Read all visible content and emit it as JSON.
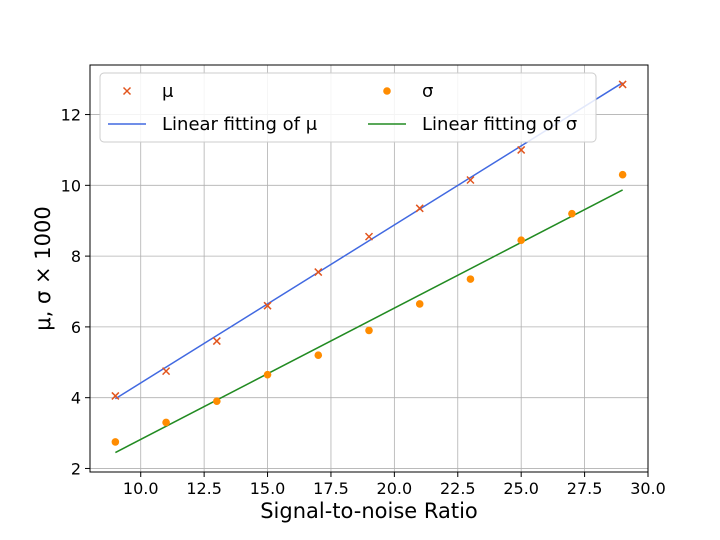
{
  "chart_data": {
    "type": "scatter",
    "xlabel": "Signal-to-noise Ratio",
    "ylabel": "μ, σ × 1000",
    "xlim": [
      8.0,
      30.0
    ],
    "ylim": [
      1.9,
      13.4
    ],
    "x_ticks": [
      "10.0",
      "12.5",
      "15.0",
      "17.5",
      "20.0",
      "22.5",
      "25.0",
      "27.5",
      "30.0"
    ],
    "x_tick_values": [
      10.0,
      12.5,
      15.0,
      17.5,
      20.0,
      22.5,
      25.0,
      27.5,
      30.0
    ],
    "y_ticks": [
      "2",
      "4",
      "6",
      "8",
      "10",
      "12"
    ],
    "y_tick_values": [
      2,
      4,
      6,
      8,
      10,
      12
    ],
    "grid": true,
    "legend_position": "top-left",
    "series": [
      {
        "name": "μ",
        "kind": "scatter",
        "marker": "x",
        "color": "#e2551e",
        "x": [
          9,
          11,
          13,
          15,
          17,
          19,
          21,
          23,
          25,
          29
        ],
        "y": [
          4.05,
          4.75,
          5.6,
          6.6,
          7.55,
          8.55,
          9.35,
          10.15,
          11.0,
          12.85
        ]
      },
      {
        "name": "σ",
        "kind": "scatter",
        "marker": "o",
        "color": "#ff8c00",
        "x": [
          9,
          11,
          13,
          15,
          17,
          19,
          21,
          23,
          25,
          27,
          29
        ],
        "y": [
          2.75,
          3.3,
          3.9,
          4.65,
          5.2,
          5.9,
          6.65,
          7.35,
          8.45,
          9.2,
          10.3
        ]
      },
      {
        "name": "Linear fitting of μ",
        "kind": "line",
        "color": "#4169e1",
        "x": [
          9,
          29
        ],
        "y": [
          3.97,
          12.9
        ]
      },
      {
        "name": "Linear fitting of σ",
        "kind": "line",
        "color": "#228b22",
        "x": [
          9,
          29
        ],
        "y": [
          2.45,
          9.87
        ]
      }
    ]
  },
  "legend": {
    "items": [
      {
        "label": "μ",
        "series": 0
      },
      {
        "label": "Linear fitting of μ",
        "series": 2
      },
      {
        "label": "σ",
        "series": 1
      },
      {
        "label": "Linear fitting of σ",
        "series": 3
      }
    ]
  }
}
